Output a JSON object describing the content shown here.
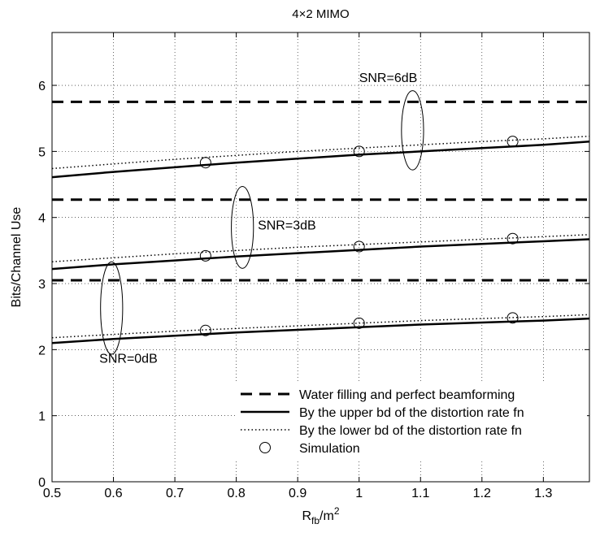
{
  "chart_data": {
    "type": "line",
    "title": "4×2 MIMO",
    "xlabel": {
      "main": "R",
      "sub": "fb",
      "tail": "/m",
      "sup": "2"
    },
    "ylabel": "Bits/Channel Use",
    "xlim": [
      0.5,
      1.375
    ],
    "ylim": [
      0,
      6.8
    ],
    "xticks": [
      0.5,
      0.6,
      0.7,
      0.8,
      0.9,
      1.0,
      1.1,
      1.2,
      1.3
    ],
    "xtick_labels": [
      "0.5",
      "0.6",
      "0.7",
      "0.8",
      "0.9",
      "1",
      "1.1",
      "1.2",
      "1.3"
    ],
    "yticks": [
      0,
      1,
      2,
      3,
      4,
      5,
      6
    ],
    "ytick_labels": [
      "0",
      "1",
      "2",
      "3",
      "4",
      "5",
      "6"
    ],
    "grid": true,
    "legend_position": "bottom-right",
    "legend": [
      {
        "label": "Water filling and perfect beamforming",
        "style": "dashed"
      },
      {
        "label": "By the upper bd of the distortion rate fn",
        "style": "solid"
      },
      {
        "label": "By the lower bd of the distortion rate fn",
        "style": "dotted"
      },
      {
        "label": "Simulation",
        "style": "circle"
      }
    ],
    "series": [
      {
        "name": "Water filling and perfect beamforming",
        "group": "SNR=0dB",
        "style": "dashed",
        "x": [
          0.5,
          1.375
        ],
        "y": [
          3.05,
          3.05
        ]
      },
      {
        "name": "By the upper bd of the distortion rate fn",
        "group": "SNR=0dB",
        "style": "solid",
        "x": [
          0.5,
          0.6,
          0.7,
          0.8,
          0.9,
          1.0,
          1.1,
          1.2,
          1.3,
          1.375
        ],
        "y": [
          2.1,
          2.16,
          2.21,
          2.26,
          2.3,
          2.34,
          2.38,
          2.41,
          2.44,
          2.47
        ]
      },
      {
        "name": "By the lower bd of the distortion rate fn",
        "group": "SNR=0dB",
        "style": "dotted",
        "x": [
          0.5,
          0.6,
          0.7,
          0.8,
          0.9,
          1.0,
          1.1,
          1.2,
          1.3,
          1.375
        ],
        "y": [
          2.18,
          2.23,
          2.28,
          2.32,
          2.36,
          2.4,
          2.44,
          2.47,
          2.5,
          2.53
        ]
      },
      {
        "name": "Simulation",
        "group": "SNR=0dB",
        "style": "circle",
        "x": [
          0.75,
          1.0,
          1.25
        ],
        "y": [
          2.29,
          2.4,
          2.48
        ]
      },
      {
        "name": "Water filling and perfect beamforming",
        "group": "SNR=3dB",
        "style": "dashed",
        "x": [
          0.5,
          1.375
        ],
        "y": [
          4.27,
          4.27
        ]
      },
      {
        "name": "By the upper bd of the distortion rate fn",
        "group": "SNR=3dB",
        "style": "solid",
        "x": [
          0.5,
          0.6,
          0.7,
          0.8,
          0.9,
          1.0,
          1.1,
          1.2,
          1.3,
          1.375
        ],
        "y": [
          3.22,
          3.29,
          3.35,
          3.41,
          3.46,
          3.51,
          3.56,
          3.6,
          3.64,
          3.67
        ]
      },
      {
        "name": "By the lower bd of the distortion rate fn",
        "group": "SNR=3dB",
        "style": "dotted",
        "x": [
          0.5,
          0.6,
          0.7,
          0.8,
          0.9,
          1.0,
          1.1,
          1.2,
          1.3,
          1.375
        ],
        "y": [
          3.33,
          3.39,
          3.45,
          3.5,
          3.55,
          3.59,
          3.63,
          3.67,
          3.71,
          3.74
        ]
      },
      {
        "name": "Simulation",
        "group": "SNR=3dB",
        "style": "circle",
        "x": [
          0.75,
          1.0,
          1.25
        ],
        "y": [
          3.42,
          3.56,
          3.68
        ]
      },
      {
        "name": "Water filling and perfect beamforming",
        "group": "SNR=6dB",
        "style": "dashed",
        "x": [
          0.5,
          1.375
        ],
        "y": [
          5.75,
          5.75
        ]
      },
      {
        "name": "By the upper bd of the distortion rate fn",
        "group": "SNR=6dB",
        "style": "solid",
        "x": [
          0.5,
          0.6,
          0.7,
          0.8,
          0.9,
          1.0,
          1.1,
          1.2,
          1.3,
          1.375
        ],
        "y": [
          4.61,
          4.69,
          4.76,
          4.83,
          4.89,
          4.95,
          5.0,
          5.05,
          5.1,
          5.15
        ]
      },
      {
        "name": "By the lower bd of the distortion rate fn",
        "group": "SNR=6dB",
        "style": "dotted",
        "x": [
          0.5,
          0.6,
          0.7,
          0.8,
          0.9,
          1.0,
          1.1,
          1.2,
          1.3,
          1.375
        ],
        "y": [
          4.74,
          4.81,
          4.88,
          4.94,
          5.0,
          5.05,
          5.1,
          5.15,
          5.19,
          5.23
        ]
      },
      {
        "name": "Simulation",
        "group": "SNR=6dB",
        "style": "circle",
        "x": [
          0.75,
          1.0,
          1.25
        ],
        "y": [
          4.83,
          5.0,
          5.15
        ]
      }
    ],
    "annotations": [
      {
        "text": "SNR=6dB",
        "label_at": [
          1.0,
          6.05
        ],
        "ellipse_at": [
          1.087,
          5.32
        ],
        "ellipse_r": [
          0.018,
          0.6
        ]
      },
      {
        "text": "SNR=3dB",
        "label_at": [
          0.835,
          3.82
        ],
        "ellipse_at": [
          0.81,
          3.85
        ],
        "ellipse_r": [
          0.018,
          0.62
        ]
      },
      {
        "text": "SNR=0dB",
        "label_at": [
          0.577,
          1.8
        ],
        "ellipse_at": [
          0.597,
          2.63
        ],
        "ellipse_r": [
          0.018,
          0.7
        ]
      }
    ]
  }
}
